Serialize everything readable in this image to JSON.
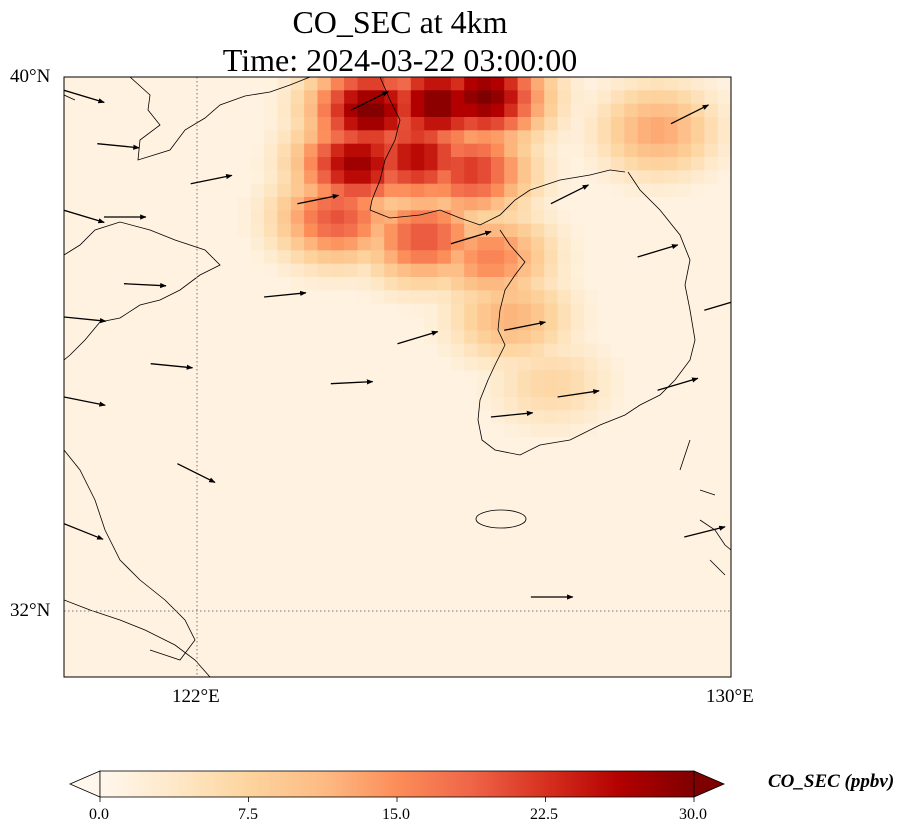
{
  "title": {
    "line1": "CO_SEC at 4km",
    "line2": "Time: 2024-03-22 03:00:00"
  },
  "axes": {
    "lat_ticks": [
      "40°N",
      "32°N"
    ],
    "lon_ticks": [
      "122°E",
      "130°E"
    ],
    "lon_range": [
      120,
      130
    ],
    "lat_range": [
      31,
      40
    ],
    "gridlines": "dotted"
  },
  "colorbar": {
    "label": "CO_SEC (ppbv)",
    "ticks": [
      "0.0",
      "7.5",
      "15.0",
      "22.5",
      "30.0"
    ],
    "min": 0,
    "max": 30,
    "colormap": "OrRd",
    "extend": "both",
    "colors": [
      "#fff7ec",
      "#fee8c8",
      "#fdd49e",
      "#fdbb84",
      "#fc8d59",
      "#ef6548",
      "#d7301f",
      "#b30000",
      "#7f0000"
    ]
  },
  "chart_data": {
    "type": "heatmap",
    "variable": "CO_SEC",
    "unit": "ppbv",
    "level": "4km",
    "time": "2024-03-22 03:00:00",
    "lon_range": [
      120,
      130
    ],
    "lat_range": [
      31,
      40
    ],
    "plume_core": [
      {
        "lon": 124.5,
        "lat": 39.6,
        "value": 30
      },
      {
        "lon": 125.5,
        "lat": 39.7,
        "value": 30
      },
      {
        "lon": 126.2,
        "lat": 39.8,
        "value": 30
      },
      {
        "lon": 124.3,
        "lat": 38.8,
        "value": 28
      },
      {
        "lon": 125.2,
        "lat": 38.9,
        "value": 26
      },
      {
        "lon": 126.0,
        "lat": 38.7,
        "value": 22
      },
      {
        "lon": 124.0,
        "lat": 38.0,
        "value": 20
      },
      {
        "lon": 125.3,
        "lat": 37.7,
        "value": 20
      },
      {
        "lon": 126.3,
        "lat": 37.4,
        "value": 16
      },
      {
        "lon": 126.6,
        "lat": 36.5,
        "value": 12
      },
      {
        "lon": 127.2,
        "lat": 35.5,
        "value": 7
      },
      {
        "lon": 128.8,
        "lat": 39.3,
        "value": 13
      }
    ],
    "wind_arrows": [
      {
        "lon": 120.0,
        "lat": 39.8,
        "u": 1,
        "v": -0.3
      },
      {
        "lon": 120.0,
        "lat": 38.0,
        "u": 1,
        "v": -0.3
      },
      {
        "lon": 120.0,
        "lat": 36.4,
        "u": 1,
        "v": -0.1
      },
      {
        "lon": 120.0,
        "lat": 35.2,
        "u": 1,
        "v": -0.2
      },
      {
        "lon": 120.0,
        "lat": 33.3,
        "u": 1,
        "v": -0.4
      },
      {
        "lon": 120.5,
        "lat": 39.0,
        "u": 1,
        "v": -0.1
      },
      {
        "lon": 120.6,
        "lat": 37.9,
        "u": 1,
        "v": 0
      },
      {
        "lon": 120.9,
        "lat": 36.9,
        "u": 1,
        "v": -0.05
      },
      {
        "lon": 121.3,
        "lat": 35.7,
        "u": 1,
        "v": -0.1
      },
      {
        "lon": 121.7,
        "lat": 34.2,
        "u": 1,
        "v": -0.5
      },
      {
        "lon": 121.9,
        "lat": 38.4,
        "u": 1,
        "v": 0.2
      },
      {
        "lon": 123.0,
        "lat": 36.7,
        "u": 1,
        "v": 0.1
      },
      {
        "lon": 123.5,
        "lat": 38.1,
        "u": 1,
        "v": 0.2
      },
      {
        "lon": 124.0,
        "lat": 35.4,
        "u": 1,
        "v": 0.05
      },
      {
        "lon": 124.3,
        "lat": 39.5,
        "u": 1,
        "v": 0.5
      },
      {
        "lon": 125.0,
        "lat": 36.0,
        "u": 1,
        "v": 0.3
      },
      {
        "lon": 125.8,
        "lat": 37.5,
        "u": 1,
        "v": 0.3
      },
      {
        "lon": 126.4,
        "lat": 34.9,
        "u": 1,
        "v": 0.1
      },
      {
        "lon": 126.6,
        "lat": 36.2,
        "u": 1,
        "v": 0.2
      },
      {
        "lon": 127.0,
        "lat": 32.2,
        "u": 1,
        "v": 0
      },
      {
        "lon": 127.3,
        "lat": 38.1,
        "u": 1,
        "v": 0.5
      },
      {
        "lon": 127.4,
        "lat": 35.2,
        "u": 1,
        "v": 0.15
      },
      {
        "lon": 128.6,
        "lat": 37.3,
        "u": 1,
        "v": 0.3
      },
      {
        "lon": 128.9,
        "lat": 35.3,
        "u": 1,
        "v": 0.3
      },
      {
        "lon": 129.1,
        "lat": 39.3,
        "u": 1,
        "v": 0.5
      },
      {
        "lon": 129.3,
        "lat": 33.1,
        "u": 1,
        "v": 0.25
      },
      {
        "lon": 129.6,
        "lat": 36.5,
        "u": 1,
        "v": 0.3
      }
    ]
  }
}
